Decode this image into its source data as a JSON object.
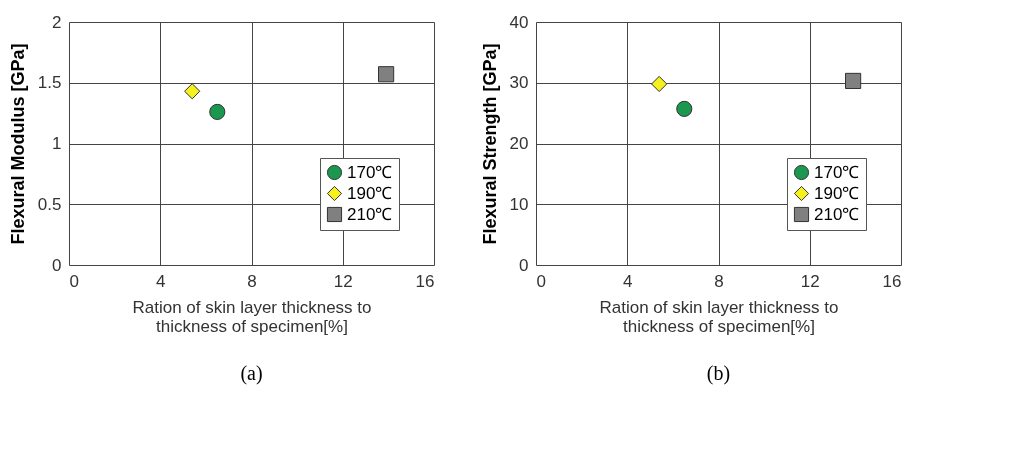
{
  "chart_data": [
    {
      "type": "scatter",
      "xlabel": "Ration of skin layer thickness to thickness of specimen[%]",
      "ylabel": "Flexural Modulus [GPa]",
      "annotations": [
        "(a)"
      ],
      "xlim": [
        0,
        16
      ],
      "xticks": [
        0,
        4,
        8,
        12,
        16
      ],
      "ylim": [
        0,
        2
      ],
      "yticks": [
        0,
        0.5,
        1,
        1.5,
        2
      ],
      "grid": true,
      "legend": "bottom right",
      "series": [
        {
          "name": "170℃",
          "color": "#1a9850",
          "marker": "circle",
          "x": [
            6.5
          ],
          "values": [
            1.26
          ]
        },
        {
          "name": "190℃",
          "color": "#f5f01e",
          "marker": "diamond",
          "x": [
            5.4
          ],
          "values": [
            1.43
          ]
        },
        {
          "name": "210℃",
          "color": "#808080",
          "marker": "square",
          "x": [
            13.9
          ],
          "values": [
            1.57
          ]
        }
      ]
    },
    {
      "type": "scatter",
      "xlabel": "Ration of skin layer thickness to thickness of specimen[%]",
      "ylabel": "Flexural Strength [GPa]",
      "annotations": [
        "(b)"
      ],
      "xlim": [
        0,
        16
      ],
      "xticks": [
        0,
        4,
        8,
        12,
        16
      ],
      "ylim": [
        0,
        40
      ],
      "yticks": [
        0,
        10,
        20,
        30,
        40
      ],
      "grid": true,
      "legend": "bottom right",
      "series": [
        {
          "name": "170℃",
          "color": "#1a9850",
          "marker": "circle",
          "x": [
            6.5
          ],
          "values": [
            25.7
          ]
        },
        {
          "name": "190℃",
          "color": "#f5f01e",
          "marker": "diamond",
          "x": [
            5.4
          ],
          "values": [
            29.8
          ]
        },
        {
          "name": "210℃",
          "color": "#808080",
          "marker": "square",
          "x": [
            13.9
          ],
          "values": [
            30.3
          ]
        }
      ]
    }
  ]
}
